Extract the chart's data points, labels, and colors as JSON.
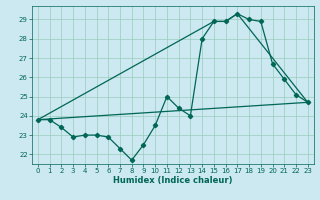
{
  "title": "",
  "xlabel": "Humidex (Indice chaleur)",
  "ylabel": "",
  "bg_color": "#cce8f0",
  "grid_color": "#99ccbb",
  "line_color": "#006655",
  "xlim": [
    -0.5,
    23.5
  ],
  "ylim": [
    21.5,
    29.7
  ],
  "yticks": [
    22,
    23,
    24,
    25,
    26,
    27,
    28,
    29
  ],
  "xticks": [
    0,
    1,
    2,
    3,
    4,
    5,
    6,
    7,
    8,
    9,
    10,
    11,
    12,
    13,
    14,
    15,
    16,
    17,
    18,
    19,
    20,
    21,
    22,
    23
  ],
  "series_main": {
    "x": [
      0,
      1,
      2,
      3,
      4,
      5,
      6,
      7,
      8,
      9,
      10,
      11,
      12,
      13,
      14,
      15,
      16,
      17,
      18,
      19,
      20,
      21,
      22,
      23
    ],
    "y": [
      23.8,
      23.8,
      23.4,
      22.9,
      23.0,
      23.0,
      22.9,
      22.3,
      21.7,
      22.5,
      23.5,
      25.0,
      24.4,
      24.0,
      28.0,
      28.9,
      28.9,
      29.3,
      29.0,
      28.9,
      26.7,
      25.9,
      25.1,
      24.7
    ]
  },
  "series_lower": {
    "x": [
      0,
      23
    ],
    "y": [
      23.8,
      24.7
    ]
  },
  "series_upper": {
    "x": [
      0,
      15,
      16,
      17,
      23
    ],
    "y": [
      23.8,
      28.9,
      28.9,
      29.3,
      24.7
    ]
  },
  "marker": "D",
  "markersize": 2.2,
  "linewidth": 0.9,
  "tick_fontsize": 5.0,
  "xlabel_fontsize": 6.0
}
